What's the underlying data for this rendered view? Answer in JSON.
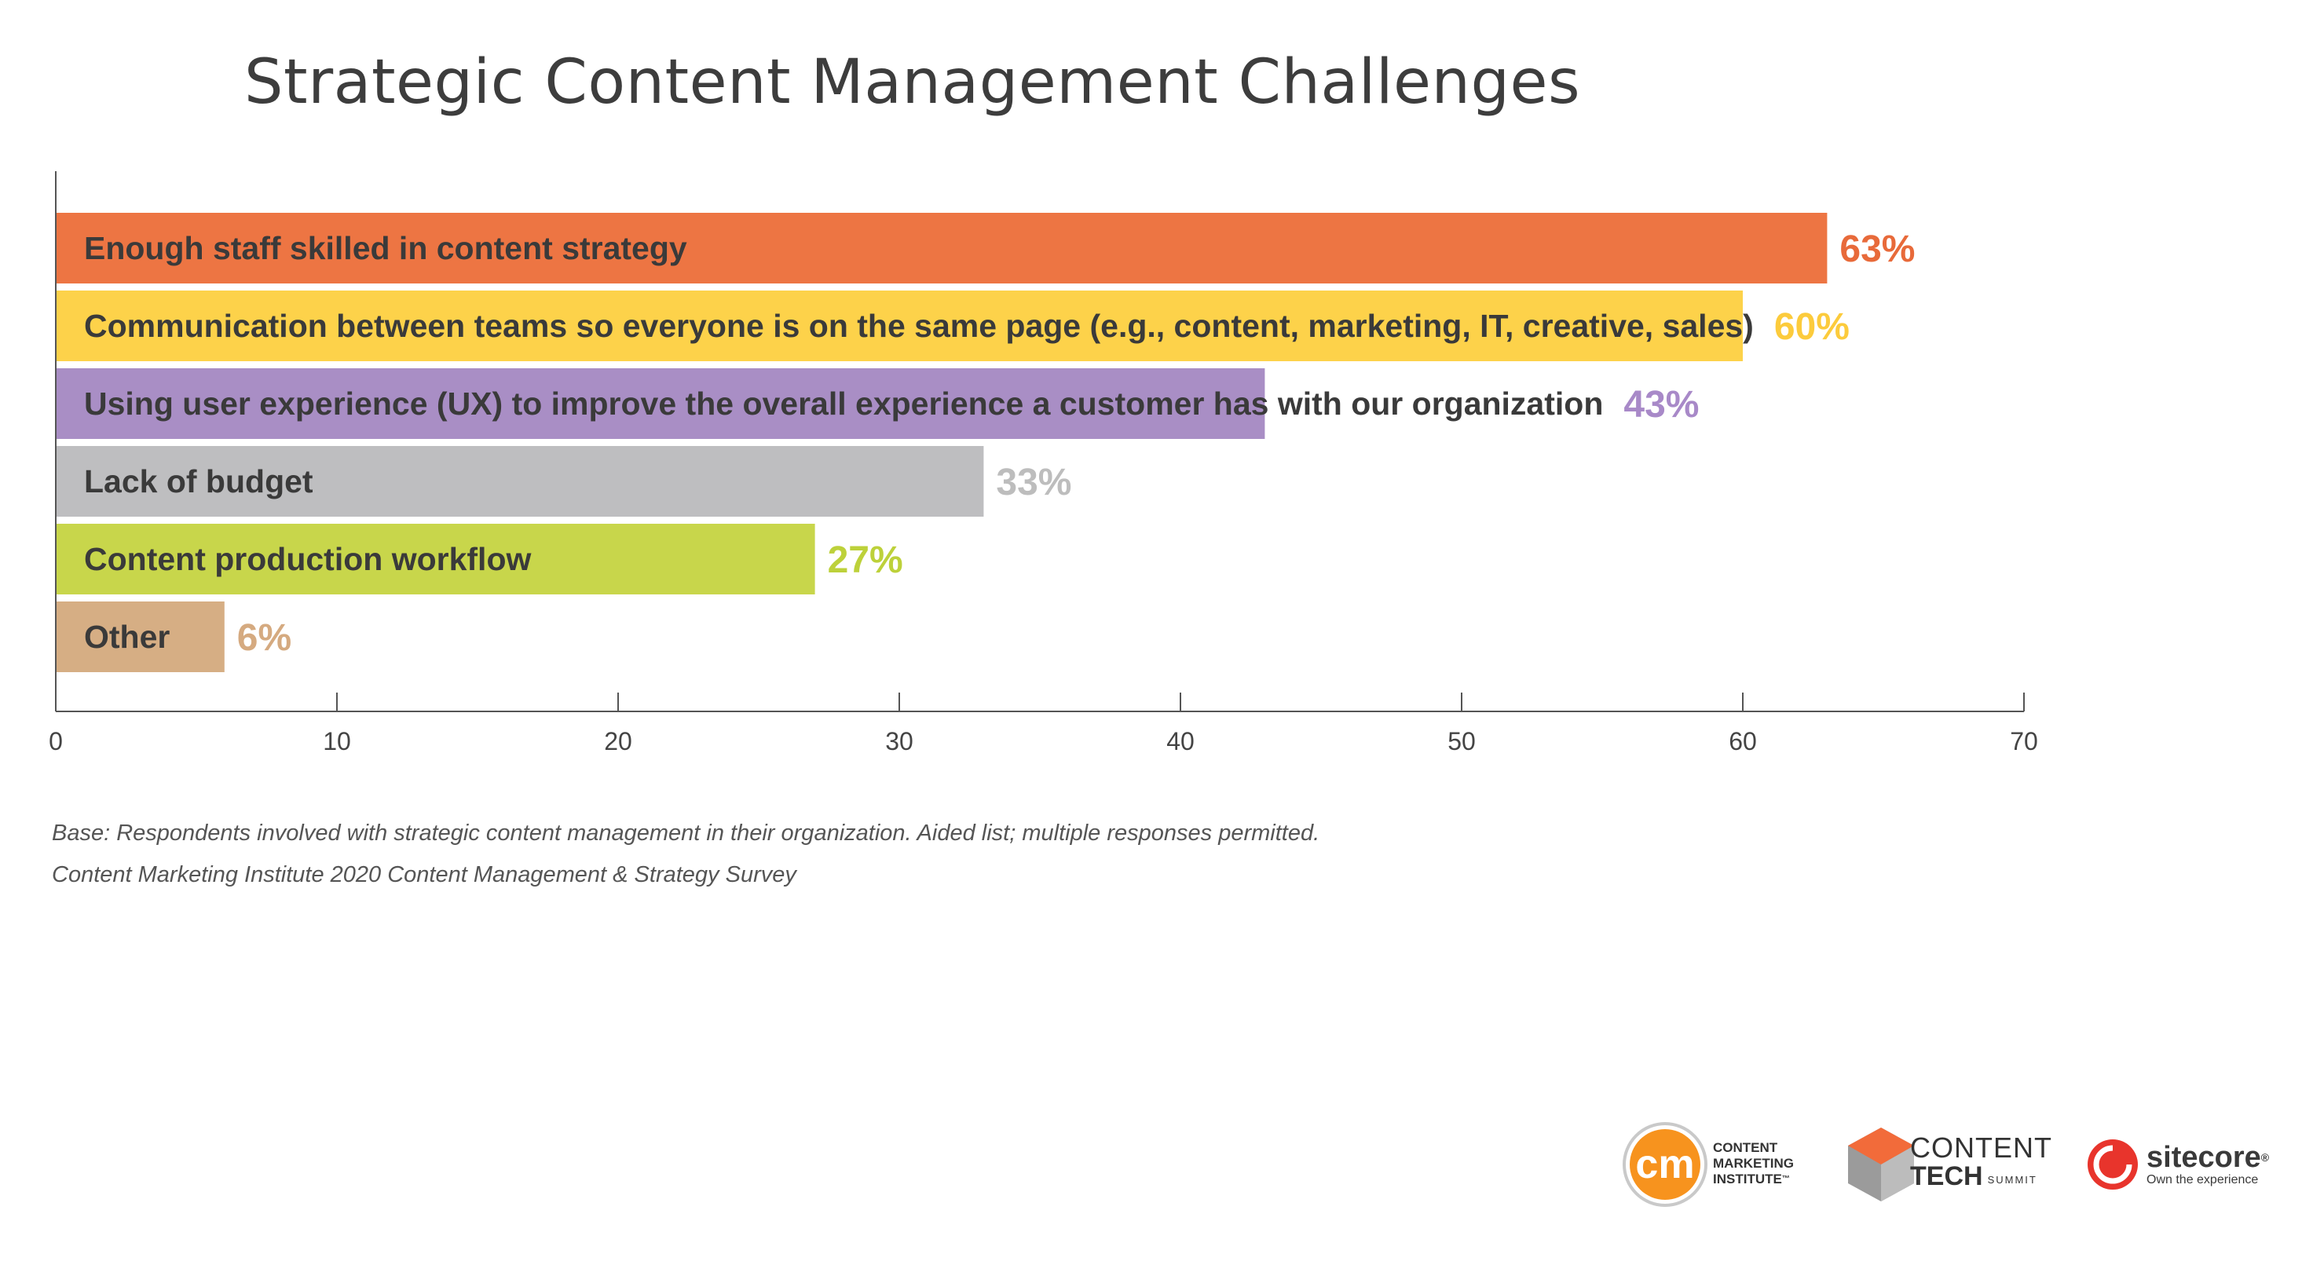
{
  "title": "Strategic Content Management Challenges",
  "chart_data": {
    "type": "bar",
    "orientation": "horizontal",
    "categories": [
      "Enough staff skilled in content strategy",
      "Communication between teams so everyone is on the same page (e.g., content, marketing, IT, creative, sales)",
      "Using user experience (UX) to improve the overall experience a customer has with our organization",
      "Lack of budget",
      "Content production workflow",
      "Other"
    ],
    "values": [
      63,
      60,
      43,
      33,
      27,
      6
    ],
    "value_labels": [
      "63%",
      "60%",
      "43%",
      "33%",
      "27%",
      "6%"
    ],
    "colors": [
      "#ED7543",
      "#FDD24A",
      "#A98EC5",
      "#BEBEC0",
      "#C8D64B",
      "#D6AE84"
    ],
    "label_colors": [
      "#E86A3A",
      "#FCCB3C",
      "#A889C8",
      "#BDBDBD",
      "#BDD13A",
      "#D5AA80"
    ],
    "xlim": [
      0,
      70
    ],
    "xticks": [
      "0",
      "10",
      "20",
      "30",
      "40",
      "50",
      "60",
      "70"
    ],
    "grid": false,
    "xlabel": "",
    "ylabel": ""
  },
  "footnotes": {
    "base": "Base: Respondents involved with strategic content management in their organization. Aided list; multiple responses permitted.",
    "source": "Content Marketing Institute 2020 Content Management & Strategy Survey"
  },
  "logos": {
    "cmi": {
      "icon_text": "cm",
      "line1": "CONTENT",
      "line2": "MARKETING",
      "line3": "INSTITUTE",
      "tm": "™",
      "color": "#F7931E"
    },
    "content_tech": {
      "word1": "CONTENT",
      "word2": "TECH",
      "word3": "SUMMIT",
      "color": "#F26B3A"
    },
    "sitecore": {
      "name": "sitecore",
      "tm": "®",
      "tagline": "Own the experience",
      "color": "#E8342C"
    }
  }
}
